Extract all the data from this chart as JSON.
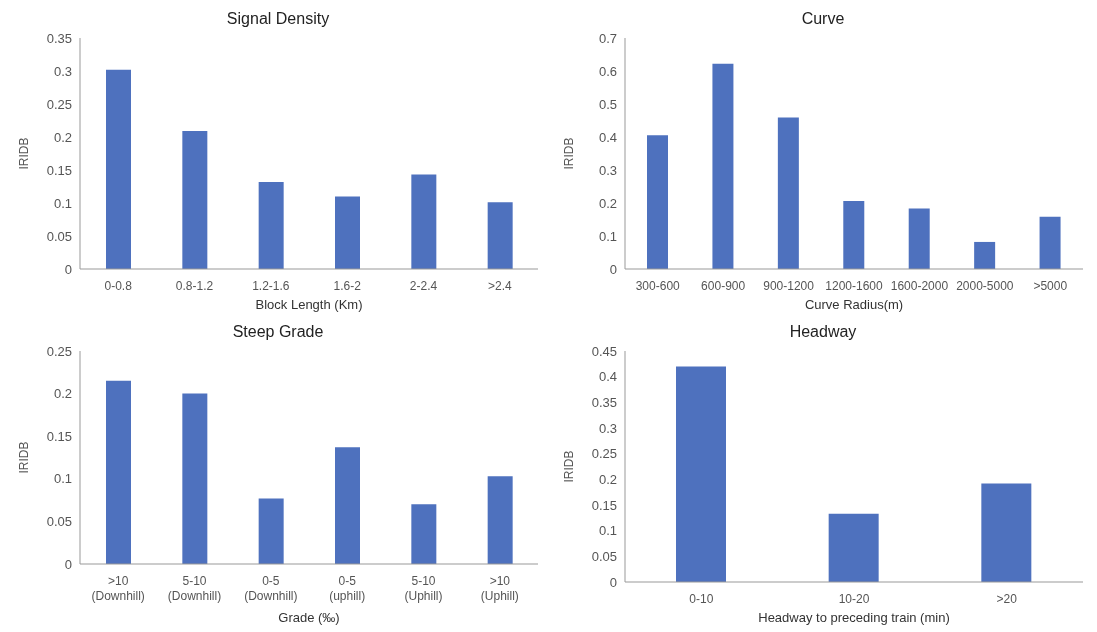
{
  "chart_data": [
    {
      "type": "bar",
      "title": "Signal Density",
      "xlabel": "Block Length (Km)",
      "ylabel": "IRIDB",
      "categories": [
        "0-0.8",
        "0.8-1.2",
        "1.2-1.6",
        "1.6-2",
        "2-2.4",
        ">2.4"
      ],
      "values": [
        0.302,
        0.209,
        0.132,
        0.11,
        0.143,
        0.101
      ],
      "color": "#4e71be",
      "ylim": [
        0,
        0.35
      ],
      "yticks": [
        0,
        0.05,
        0.1,
        0.15,
        0.2,
        0.25,
        0.3,
        0.35
      ],
      "grid": false,
      "legend": false
    },
    {
      "type": "bar",
      "title": "Curve",
      "xlabel": "Curve Radius(m)",
      "ylabel": "IRIDB",
      "categories": [
        "300-600",
        "600-900",
        "900-1200",
        "1200-1600",
        "1600-2000",
        "2000-5000",
        ">5000"
      ],
      "values": [
        0.405,
        0.622,
        0.459,
        0.206,
        0.183,
        0.082,
        0.158
      ],
      "color": "#4e71be",
      "ylim": [
        0,
        0.7
      ],
      "yticks": [
        0,
        0.1,
        0.2,
        0.3,
        0.4,
        0.5,
        0.6,
        0.7
      ],
      "grid": false,
      "legend": false
    },
    {
      "type": "bar",
      "title": "Steep Grade",
      "xlabel": "Grade (‰)",
      "ylabel": "IRIDB",
      "categories": [
        ">10\n(Downhill)",
        "5-10\n(Downhill)",
        "0-5\n(Downhill)",
        "0-5\n(uphill)",
        "5-10\n(Uphill)",
        ">10\n(Uphill)"
      ],
      "values": [
        0.215,
        0.2,
        0.077,
        0.137,
        0.07,
        0.103
      ],
      "color": "#4e71be",
      "ylim": [
        0,
        0.25
      ],
      "yticks": [
        0,
        0.05,
        0.1,
        0.15,
        0.2,
        0.25
      ],
      "grid": false,
      "legend": false
    },
    {
      "type": "bar",
      "title": "Headway",
      "xlabel": "Headway to preceding train (min)",
      "ylabel": "IRIDB",
      "categories": [
        "0-10",
        "10-20",
        ">20"
      ],
      "values": [
        0.42,
        0.133,
        0.192
      ],
      "color": "#4e71be",
      "ylim": [
        0,
        0.45
      ],
      "yticks": [
        0,
        0.05,
        0.1,
        0.15,
        0.2,
        0.25,
        0.3,
        0.35,
        0.4,
        0.45
      ],
      "grid": false,
      "legend": false
    }
  ]
}
